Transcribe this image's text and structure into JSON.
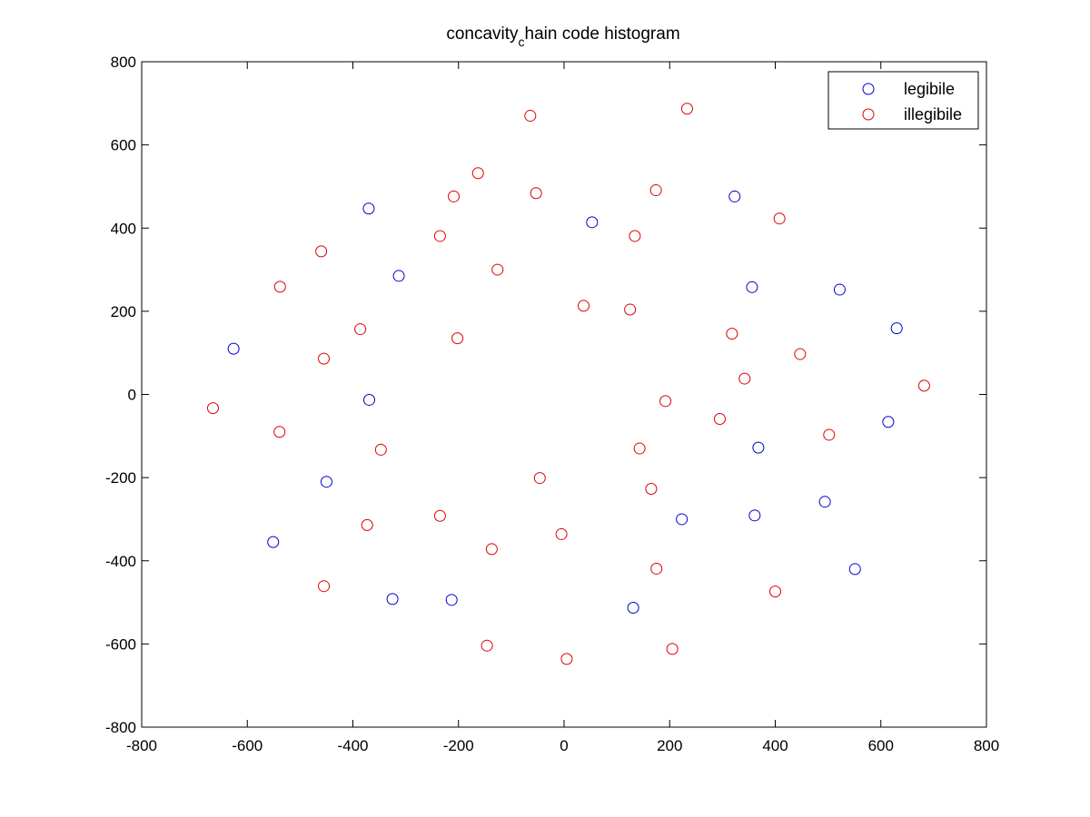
{
  "chart_data": {
    "type": "scatter",
    "title": "concavity_chain code histogram",
    "title_parts": {
      "before": "concavity",
      "subscript": "c",
      "after": "hain code histogram"
    },
    "xlabel": "",
    "ylabel": "",
    "xlim": [
      -800,
      800
    ],
    "ylim": [
      -800,
      800
    ],
    "xticks": [
      -800,
      -600,
      -400,
      -200,
      0,
      200,
      400,
      600,
      800
    ],
    "yticks": [
      -800,
      -600,
      -400,
      -200,
      0,
      200,
      400,
      600,
      800
    ],
    "xtick_labels": [
      "-800",
      "-600",
      "-400",
      "-200",
      "0",
      "200",
      "400",
      "600",
      "800"
    ],
    "ytick_labels": [
      "-800",
      "-600",
      "-400",
      "-200",
      "0",
      "200",
      "400",
      "600",
      "800"
    ],
    "grid": false,
    "legend_position": "top-right",
    "marker": "open-circle",
    "series": [
      {
        "name": "legibile",
        "color": "#0000cc",
        "points": [
          [
            -370,
            447
          ],
          [
            -313,
            285
          ],
          [
            53,
            414
          ],
          [
            323,
            476
          ],
          [
            356,
            258
          ],
          [
            522,
            252
          ],
          [
            630,
            159
          ],
          [
            -626,
            110
          ],
          [
            -369,
            -13
          ],
          [
            -450,
            -210
          ],
          [
            -551,
            -355
          ],
          [
            -325,
            -492
          ],
          [
            -213,
            -494
          ],
          [
            131,
            -513
          ],
          [
            223,
            -300
          ],
          [
            361,
            -291
          ],
          [
            368,
            -128
          ],
          [
            494,
            -258
          ],
          [
            614,
            -66
          ],
          [
            551,
            -420
          ]
        ]
      },
      {
        "name": "illegibile",
        "color": "#dd0000",
        "points": [
          [
            -64,
            670
          ],
          [
            233,
            687
          ],
          [
            -163,
            532
          ],
          [
            -209,
            476
          ],
          [
            -53,
            484
          ],
          [
            174,
            491
          ],
          [
            408,
            423
          ],
          [
            -460,
            344
          ],
          [
            -235,
            381
          ],
          [
            134,
            381
          ],
          [
            -538,
            259
          ],
          [
            -126,
            300
          ],
          [
            37,
            213
          ],
          [
            125,
            204
          ],
          [
            -386,
            157
          ],
          [
            -202,
            135
          ],
          [
            318,
            146
          ],
          [
            447,
            97
          ],
          [
            -455,
            86
          ],
          [
            -665,
            -33
          ],
          [
            342,
            38
          ],
          [
            682,
            21
          ],
          [
            192,
            -16
          ],
          [
            295,
            -59
          ],
          [
            -539,
            -90
          ],
          [
            -347,
            -133
          ],
          [
            143,
            -130
          ],
          [
            502,
            -97
          ],
          [
            -46,
            -201
          ],
          [
            165,
            -227
          ],
          [
            -235,
            -292
          ],
          [
            -373,
            -314
          ],
          [
            -5,
            -336
          ],
          [
            -137,
            -372
          ],
          [
            175,
            -419
          ],
          [
            -455,
            -461
          ],
          [
            400,
            -474
          ],
          [
            -146,
            -604
          ],
          [
            5,
            -636
          ],
          [
            205,
            -612
          ]
        ]
      }
    ]
  }
}
